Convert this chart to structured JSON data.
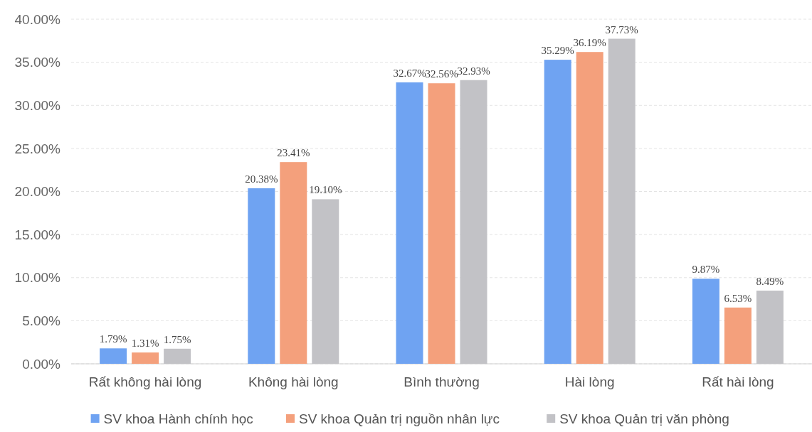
{
  "chart_data": {
    "type": "bar",
    "categories": [
      "Rất không hài lòng",
      "Không hài lòng",
      "Bình thường",
      "Hài lòng",
      "Rất hài lòng"
    ],
    "series": [
      {
        "name": "SV khoa Hành chính học",
        "color": "#6fa3f2",
        "values": [
          1.79,
          20.38,
          32.67,
          35.29,
          9.87
        ],
        "value_labels": [
          "1.79%",
          "20.38%",
          "32.67%",
          "35.29%",
          "9.87%"
        ]
      },
      {
        "name": "SV khoa Quản trị nguồn nhân lực",
        "color": "#f4a07c",
        "values": [
          1.31,
          23.41,
          32.56,
          36.19,
          6.53
        ],
        "value_labels": [
          "1.31%",
          "23.41%",
          "32.56%",
          "36.19%",
          "6.53%"
        ]
      },
      {
        "name": "SV khoa Quản trị văn phòng",
        "color": "#c2c2c6",
        "values": [
          1.75,
          19.1,
          32.93,
          37.73,
          8.49
        ],
        "value_labels": [
          "1.75%",
          "19.10%",
          "32.93%",
          "37.73%",
          "8.49%"
        ]
      }
    ],
    "ylim": [
      0,
      40
    ],
    "yticks": [
      {
        "value": 0,
        "label": "0.00%"
      },
      {
        "value": 5,
        "label": "5.00%"
      },
      {
        "value": 10,
        "label": "10.00%"
      },
      {
        "value": 15,
        "label": "15.00%"
      },
      {
        "value": 20,
        "label": "20.00%"
      },
      {
        "value": 25,
        "label": "25.00%"
      },
      {
        "value": 30,
        "label": "30.00%"
      },
      {
        "value": 35,
        "label": "35.00%"
      },
      {
        "value": 40,
        "label": "40.00%"
      }
    ],
    "grid": "y",
    "legend": "bottom"
  }
}
